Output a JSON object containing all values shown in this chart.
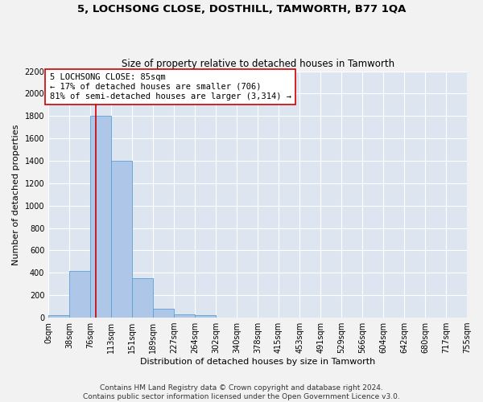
{
  "title": "5, LOCHSONG CLOSE, DOSTHILL, TAMWORTH, B77 1QA",
  "subtitle": "Size of property relative to detached houses in Tamworth",
  "xlabel": "Distribution of detached houses by size in Tamworth",
  "ylabel": "Number of detached properties",
  "bin_edges": [
    0,
    38,
    76,
    113,
    151,
    189,
    227,
    264,
    302,
    340,
    378,
    415,
    453,
    491,
    529,
    566,
    604,
    642,
    680,
    717,
    755
  ],
  "bin_counts": [
    20,
    420,
    1800,
    1400,
    350,
    80,
    30,
    20,
    0,
    0,
    0,
    0,
    0,
    0,
    0,
    0,
    0,
    0,
    0,
    0
  ],
  "bar_color": "#aec6e8",
  "bar_edgecolor": "#5a9fd4",
  "background_color": "#dde6f0",
  "fig_background_color": "#f2f2f2",
  "grid_color": "#ffffff",
  "vline_x": 85,
  "vline_color": "#cc0000",
  "annotation_text": "5 LOCHSONG CLOSE: 85sqm\n← 17% of detached houses are smaller (706)\n81% of semi-detached houses are larger (3,314) →",
  "annotation_box_color": "#ffffff",
  "annotation_box_edgecolor": "#cc0000",
  "ylim": [
    0,
    2200
  ],
  "yticks": [
    0,
    200,
    400,
    600,
    800,
    1000,
    1200,
    1400,
    1600,
    1800,
    2000,
    2200
  ],
  "xtick_labels": [
    "0sqm",
    "38sqm",
    "76sqm",
    "113sqm",
    "151sqm",
    "189sqm",
    "227sqm",
    "264sqm",
    "302sqm",
    "340sqm",
    "378sqm",
    "415sqm",
    "453sqm",
    "491sqm",
    "529sqm",
    "566sqm",
    "604sqm",
    "642sqm",
    "680sqm",
    "717sqm",
    "755sqm"
  ],
  "footer_text": "Contains HM Land Registry data © Crown copyright and database right 2024.\nContains public sector information licensed under the Open Government Licence v3.0.",
  "title_fontsize": 9.5,
  "subtitle_fontsize": 8.5,
  "axis_label_fontsize": 8,
  "tick_fontsize": 7,
  "annotation_fontsize": 7.5,
  "footer_fontsize": 6.5
}
